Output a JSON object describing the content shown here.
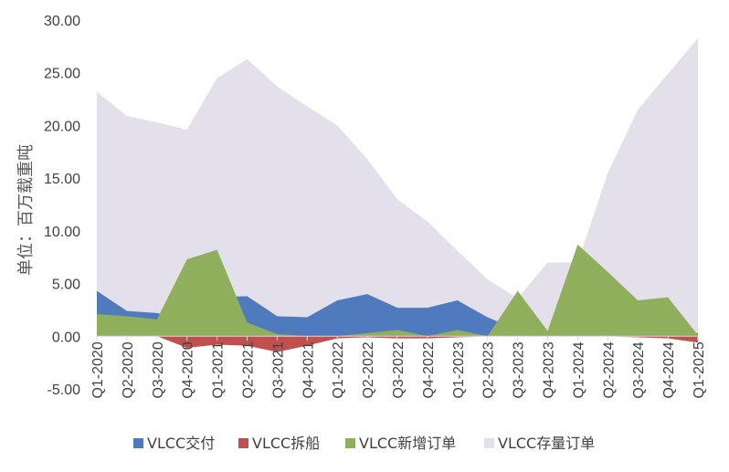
{
  "chart_data": {
    "type": "area",
    "ylabel": "单位：百万载重吨",
    "xlabel": "",
    "ylim": [
      -5,
      30
    ],
    "ytick_labels": [
      "-5.00",
      "0.00",
      "5.00",
      "10.00",
      "15.00",
      "20.00",
      "25.00",
      "30.00"
    ],
    "categories": [
      "Q1-2020",
      "Q2-2020",
      "Q3-2020",
      "Q4-2020",
      "Q1-2021",
      "Q2-2021",
      "Q3-2021",
      "Q4-2021",
      "Q1-2022",
      "Q2-2022",
      "Q3-2022",
      "Q4-2022",
      "Q1-2023",
      "Q2-2023",
      "Q3-2023",
      "Q4-2023",
      "Q1-2024",
      "Q2-2024",
      "Q3-2024",
      "Q4-2024",
      "Q1-2025"
    ],
    "legend_position": "bottom",
    "series": [
      {
        "name": "VLCC存量订单",
        "color": "#e3dfeb",
        "values": [
          23.2,
          20.9,
          20.3,
          19.6,
          24.5,
          26.3,
          23.7,
          21.8,
          20.0,
          16.8,
          13.0,
          10.9,
          8.1,
          5.4,
          3.6,
          7.0,
          7.0,
          15.5,
          21.5,
          24.9,
          28.3
        ]
      },
      {
        "name": "VLCC交付",
        "color": "#4f7bbe",
        "values": [
          4.3,
          2.4,
          2.2,
          1.6,
          3.7,
          3.8,
          1.9,
          1.8,
          3.4,
          4.0,
          2.7,
          2.7,
          3.4,
          1.8,
          0.6,
          0.5,
          0.2,
          0.2,
          0.1,
          0.1,
          0.3
        ]
      },
      {
        "name": "VLCC拆船",
        "color": "#c0504d",
        "values": [
          0,
          0,
          0,
          -1.1,
          -0.8,
          -0.9,
          -1.5,
          -0.9,
          -0.2,
          -0.1,
          -0.2,
          -0.2,
          -0.1,
          0,
          0,
          0,
          0,
          0,
          -0.1,
          -0.2,
          -0.6
        ]
      },
      {
        "name": "VLCC新增订单",
        "color": "#8faf5c",
        "values": [
          2.1,
          1.9,
          1.6,
          7.3,
          8.2,
          1.3,
          0.2,
          0,
          0,
          0.3,
          0.6,
          0,
          0.6,
          0,
          4.3,
          0.5,
          8.7,
          6.1,
          3.4,
          3.7,
          0.1
        ]
      }
    ],
    "legend_order": [
      "VLCC交付",
      "VLCC拆船",
      "VLCC新增订单",
      "VLCC存量订单"
    ]
  }
}
